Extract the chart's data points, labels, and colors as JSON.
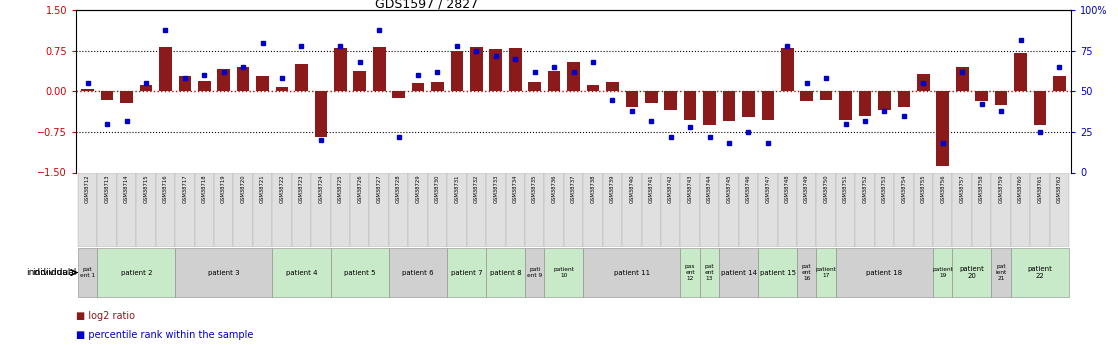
{
  "title": "GDS1597 / 2827",
  "gsm_labels": [
    "GSM38712",
    "GSM38713",
    "GSM38714",
    "GSM38715",
    "GSM38716",
    "GSM38717",
    "GSM38718",
    "GSM38719",
    "GSM38720",
    "GSM38721",
    "GSM38722",
    "GSM38723",
    "GSM38724",
    "GSM38725",
    "GSM38726",
    "GSM38727",
    "GSM38728",
    "GSM38729",
    "GSM38730",
    "GSM38731",
    "GSM38732",
    "GSM38733",
    "GSM38734",
    "GSM38735",
    "GSM38736",
    "GSM38737",
    "GSM38738",
    "GSM38739",
    "GSM38740",
    "GSM38741",
    "GSM38742",
    "GSM38743",
    "GSM38744",
    "GSM38745",
    "GSM38746",
    "GSM38747",
    "GSM38748",
    "GSM38749",
    "GSM38750",
    "GSM38751",
    "GSM38752",
    "GSM38753",
    "GSM38754",
    "GSM38755",
    "GSM38756",
    "GSM38757",
    "GSM38758",
    "GSM38759",
    "GSM38760",
    "GSM38761",
    "GSM38762"
  ],
  "log2_ratio": [
    0.05,
    -0.15,
    -0.22,
    0.12,
    0.82,
    0.28,
    0.2,
    0.42,
    0.45,
    0.28,
    0.08,
    0.5,
    -0.85,
    0.8,
    0.38,
    0.82,
    -0.12,
    0.15,
    0.18,
    0.75,
    0.82,
    0.78,
    0.8,
    0.18,
    0.38,
    0.55,
    0.12,
    0.18,
    -0.28,
    -0.22,
    -0.35,
    -0.52,
    -0.62,
    -0.55,
    -0.48,
    -0.52,
    0.8,
    -0.18,
    -0.15,
    -0.52,
    -0.45,
    -0.35,
    -0.28,
    0.32,
    -1.38,
    0.45,
    -0.18,
    -0.25,
    0.72,
    -0.62,
    0.28
  ],
  "percentile": [
    55,
    30,
    32,
    55,
    88,
    58,
    60,
    62,
    65,
    80,
    58,
    78,
    20,
    78,
    68,
    88,
    22,
    60,
    62,
    78,
    75,
    72,
    70,
    62,
    65,
    62,
    68,
    45,
    38,
    32,
    22,
    28,
    22,
    18,
    25,
    18,
    78,
    55,
    58,
    30,
    32,
    38,
    35,
    55,
    18,
    62,
    42,
    38,
    82,
    25,
    65
  ],
  "patients": [
    {
      "label": "pat\nent 1",
      "start": 0,
      "end": 1,
      "color": "#d0d0d0",
      "small": true
    },
    {
      "label": "patient 2",
      "start": 1,
      "end": 5,
      "color": "#c8eac8",
      "small": false
    },
    {
      "label": "patient 3",
      "start": 5,
      "end": 10,
      "color": "#d0d0d0",
      "small": false
    },
    {
      "label": "patient 4",
      "start": 10,
      "end": 13,
      "color": "#c8eac8",
      "small": false
    },
    {
      "label": "patient 5",
      "start": 13,
      "end": 16,
      "color": "#c8eac8",
      "small": false
    },
    {
      "label": "patient 6",
      "start": 16,
      "end": 19,
      "color": "#d0d0d0",
      "small": false
    },
    {
      "label": "patient 7",
      "start": 19,
      "end": 21,
      "color": "#c8eac8",
      "small": false
    },
    {
      "label": "patient 8",
      "start": 21,
      "end": 23,
      "color": "#c8eac8",
      "small": false
    },
    {
      "label": "pati\nent 9",
      "start": 23,
      "end": 24,
      "color": "#d0d0d0",
      "small": true
    },
    {
      "label": "patient\n10",
      "start": 24,
      "end": 26,
      "color": "#c8eac8",
      "small": true
    },
    {
      "label": "patient 11",
      "start": 26,
      "end": 31,
      "color": "#d0d0d0",
      "small": false
    },
    {
      "label": "pas\nent\n12",
      "start": 31,
      "end": 32,
      "color": "#c8eac8",
      "small": true
    },
    {
      "label": "pat\nent\n13",
      "start": 32,
      "end": 33,
      "color": "#c8eac8",
      "small": true
    },
    {
      "label": "patient 14",
      "start": 33,
      "end": 35,
      "color": "#d0d0d0",
      "small": false
    },
    {
      "label": "patient 15",
      "start": 35,
      "end": 37,
      "color": "#c8eac8",
      "small": false
    },
    {
      "label": "pat\nent\n16",
      "start": 37,
      "end": 38,
      "color": "#d0d0d0",
      "small": true
    },
    {
      "label": "patient\n17",
      "start": 38,
      "end": 39,
      "color": "#c8eac8",
      "small": true
    },
    {
      "label": "patient 18",
      "start": 39,
      "end": 44,
      "color": "#d0d0d0",
      "small": false
    },
    {
      "label": "patient\n19",
      "start": 44,
      "end": 45,
      "color": "#c8eac8",
      "small": true
    },
    {
      "label": "patient\n20",
      "start": 45,
      "end": 47,
      "color": "#c8eac8",
      "small": false
    },
    {
      "label": "pat\nient\n21",
      "start": 47,
      "end": 48,
      "color": "#d0d0d0",
      "small": true
    },
    {
      "label": "patient\n22",
      "start": 48,
      "end": 51,
      "color": "#c8eac8",
      "small": false
    }
  ],
  "ylim": [
    -1.5,
    1.5
  ],
  "yticks_left": [
    -1.5,
    -0.75,
    0.0,
    0.75,
    1.5
  ],
  "yticks_right_pct": [
    0,
    25,
    50,
    75,
    100
  ],
  "hlines_black": [
    0.75,
    -0.75
  ],
  "bar_color": "#8B1A1A",
  "dot_color": "#0000cc",
  "zero_line_color": "#cc0000",
  "bg_color": "#ffffff",
  "left_ycolor": "#cc0000",
  "right_ycolor": "#0000cc"
}
